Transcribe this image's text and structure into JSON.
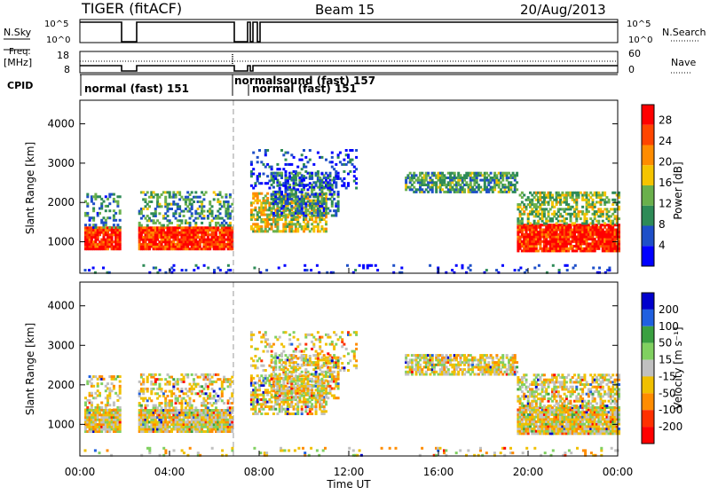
{
  "header": {
    "title": "TIGER (fitACF)",
    "beam": "Beam 15",
    "date": "20/Aug/2013"
  },
  "small_panels": {
    "nsky_label": "N.Sky",
    "nsky_ticks": [
      "10^5",
      "10^0"
    ],
    "nsearch_label": "N.Search",
    "freq_label_1": "Freq.",
    "freq_label_2": "[MHz]",
    "freq_ticks_left": [
      "18",
      "8"
    ],
    "nave_ticks_right": [
      "60",
      "0"
    ],
    "nave_label": "Nave",
    "cpid_label": "CPID"
  },
  "cpid_segments": [
    {
      "label": "normal (fast) 151",
      "start_hr": 0.0
    },
    {
      "label": "normalsound (fast) 157",
      "start_hr": 6.85
    },
    {
      "label": "normal (fast) 151",
      "start_hr": 7.45
    }
  ],
  "chart_data": [
    {
      "type": "heatmap",
      "panel": "power",
      "ylabel": "Slant Range [km]",
      "yticks": [
        1000,
        2000,
        3000,
        4000
      ],
      "ylim": [
        200,
        4600
      ],
      "xlim_hours": [
        0,
        24
      ],
      "colorbar_label": "Power [dB]",
      "colorbar_ticks": [
        4,
        8,
        12,
        16,
        20,
        24,
        28
      ],
      "colorbar_range": [
        0,
        31
      ],
      "colors": [
        "#0000ff",
        "#1e4fc8",
        "#2e8b57",
        "#6ab04c",
        "#f5c400",
        "#ff8c00",
        "#ff4500",
        "#ff0000"
      ],
      "data_gaps_hours": [
        [
          1.8,
          2.6
        ],
        [
          6.8,
          7.6
        ]
      ]
    },
    {
      "type": "heatmap",
      "panel": "velocity",
      "ylabel": "Slant Range [km]",
      "yticks": [
        1000,
        2000,
        3000,
        4000
      ],
      "ylim": [
        200,
        4600
      ],
      "xlim_hours": [
        0,
        24
      ],
      "colorbar_label": "Velocity [m s⁻¹]",
      "colorbar_ticks": [
        "200",
        "100",
        "50",
        "15",
        "-15",
        "-50",
        "-100",
        "-200"
      ],
      "colors": [
        "#0000cc",
        "#2060e0",
        "#3aa040",
        "#80d060",
        "#c0c0c0",
        "#f0c000",
        "#ff8c00",
        "#ff3000",
        "#ff0000"
      ],
      "data_gaps_hours": [
        [
          1.8,
          2.6
        ],
        [
          6.8,
          7.6
        ]
      ]
    }
  ],
  "xaxis": {
    "ticks": [
      "00:00",
      "04:00",
      "08:00",
      "12:00",
      "16:00",
      "20:00",
      "00:00"
    ],
    "label": "Time UT"
  }
}
